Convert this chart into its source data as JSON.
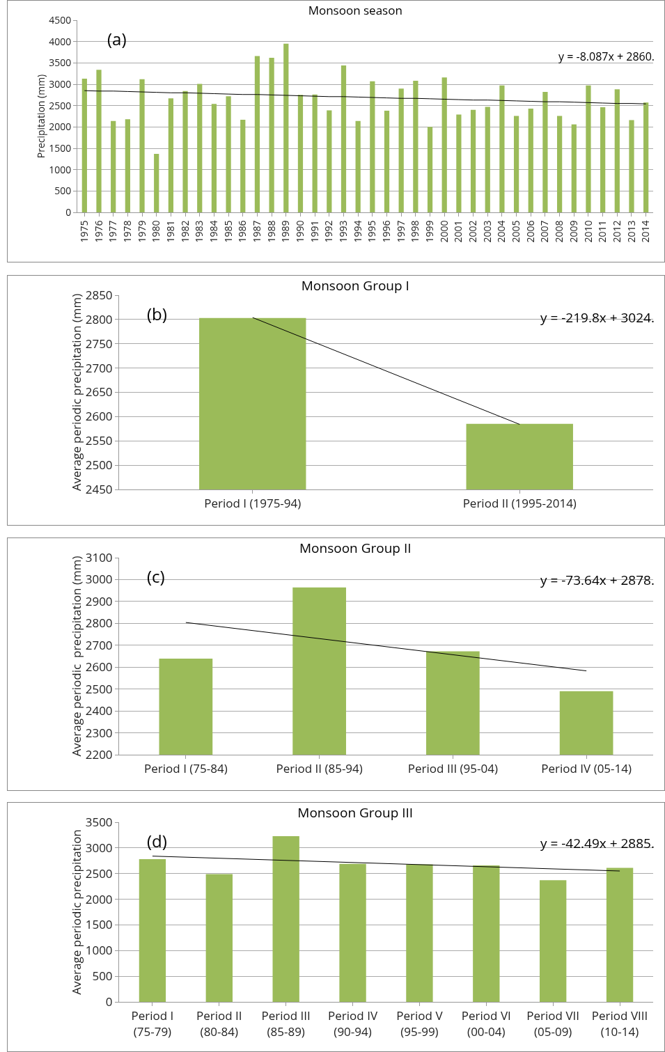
{
  "chart_data": [
    {
      "type": "bar",
      "title": "Monsoon season",
      "ylabel": "Precipitation (mm)",
      "annotations": [
        "(a)",
        "y = -8.087x + 2860."
      ],
      "categories": [
        "1975",
        "1976",
        "1977",
        "1978",
        "1979",
        "1980",
        "1981",
        "1982",
        "1983",
        "1984",
        "1985",
        "1986",
        "1987",
        "1988",
        "1989",
        "1990",
        "1991",
        "1992",
        "1993",
        "1994",
        "1995",
        "1996",
        "1997",
        "1998",
        "1999",
        "2000",
        "2001",
        "2002",
        "2003",
        "2004",
        "2005",
        "2006",
        "2007",
        "2008",
        "2009",
        "2010",
        "2011",
        "2012",
        "2013",
        "2014"
      ],
      "series": [
        {
          "color": "#9bbb59",
          "values": [
            3130,
            3340,
            2140,
            2180,
            3120,
            1370,
            2670,
            2840,
            3010,
            2540,
            2720,
            2170,
            3660,
            3620,
            3950,
            2750,
            2760,
            2390,
            3440,
            2140,
            3070,
            2380,
            2900,
            3080,
            2000,
            3160,
            2290,
            2400,
            2470,
            2970,
            2260,
            2430,
            2820,
            2260,
            2060,
            2970,
            2460,
            2880,
            2160,
            2570
          ]
        },
        {
          "type": "line",
          "color": "#000000",
          "values": [
            2850,
            2840,
            2840,
            2830,
            2820,
            2810,
            2800,
            2800,
            2790,
            2780,
            2770,
            2760,
            2760,
            2750,
            2740,
            2730,
            2720,
            2710,
            2710,
            2700,
            2690,
            2680,
            2670,
            2670,
            2660,
            2650,
            2640,
            2630,
            2630,
            2620,
            2610,
            2600,
            2590,
            2590,
            2580,
            2570,
            2560,
            2550,
            2550,
            2540
          ]
        }
      ],
      "ylim": [
        0,
        4500
      ],
      "yticks": [
        0,
        500,
        1000,
        1500,
        2000,
        2500,
        3000,
        3500,
        4000,
        4500
      ],
      "grid": "y",
      "legend": false
    },
    {
      "type": "bar",
      "title": "Monsoon Group I",
      "ylabel": "Average periodic precipitation (mm)",
      "annotations": [
        "(b)",
        "y = -219.8x + 3024."
      ],
      "categories": [
        "Period I (1975-94)",
        "Period II (1995-2014)"
      ],
      "series": [
        {
          "color": "#9bbb59",
          "values": [
            2803,
            2585
          ]
        },
        {
          "type": "line",
          "color": "#000000",
          "x": [
            "Period I (1975-94)",
            "Period II (1995-2014)"
          ],
          "values": [
            2804,
            2584
          ]
        }
      ],
      "ylim": [
        2450,
        2850
      ],
      "yticks": [
        2450,
        2500,
        2550,
        2600,
        2650,
        2700,
        2750,
        2800,
        2850
      ],
      "grid": "y",
      "legend": false
    },
    {
      "type": "bar",
      "title": "Monsoon Group II",
      "ylabel": "Average periodic  precipitation (mm)",
      "annotations": [
        "(c)",
        "y = -73.64x + 2878."
      ],
      "categories": [
        "Period I (75-84)",
        "Period II (85-94)",
        "Period III (95-04)",
        "Period IV (05-14)"
      ],
      "series": [
        {
          "color": "#9bbb59",
          "values": [
            2639,
            2964,
            2672,
            2490
          ]
        },
        {
          "type": "line",
          "color": "#000000",
          "x": [
            "Period I (75-84)",
            "Period IV (05-14)"
          ],
          "values": [
            2804,
            2583
          ]
        }
      ],
      "ylim": [
        2200,
        3100
      ],
      "yticks": [
        2200,
        2300,
        2400,
        2500,
        2600,
        2700,
        2800,
        2900,
        3000,
        3100
      ],
      "grid": "y",
      "legend": false
    },
    {
      "type": "bar",
      "title": "Monsoon Group III",
      "ylabel": "Average periodic precipitation",
      "annotations": [
        "(d)",
        "y = -42.49x + 2885."
      ],
      "categories": [
        "Period I (75-79)",
        "Period II (80-84)",
        "Period III (85-89)",
        "Period IV (90-94)",
        "Period V (95-99)",
        "Period VI (00-04)",
        "Period VII (05-09)",
        "Period VIII (10-14)"
      ],
      "series": [
        {
          "color": "#9bbb59",
          "values": [
            2780,
            2490,
            3230,
            2690,
            2680,
            2660,
            2370,
            2610
          ]
        },
        {
          "type": "line",
          "color": "#000000",
          "x": [
            "Period I (75-79)",
            "Period VIII (10-14)"
          ],
          "values": [
            2840,
            2550
          ]
        }
      ],
      "ylim": [
        0,
        3500
      ],
      "yticks": [
        0,
        500,
        1000,
        1500,
        2000,
        2500,
        3000,
        3500
      ],
      "grid": "y",
      "legend": false
    }
  ]
}
